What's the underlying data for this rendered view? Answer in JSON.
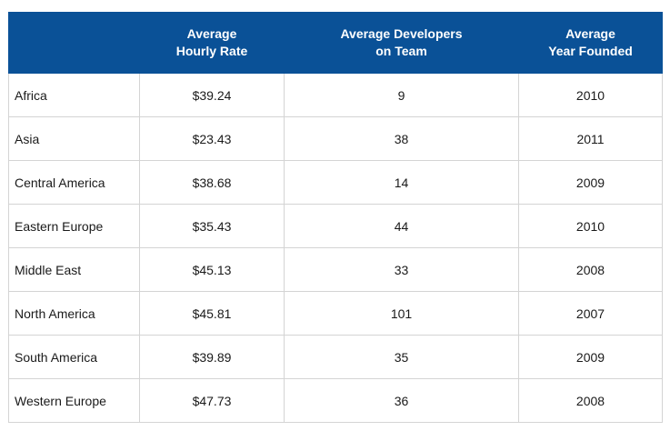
{
  "chart_data": {
    "type": "table",
    "columns": [
      {
        "line1": "",
        "line2": ""
      },
      {
        "line1": "Average",
        "line2": "Hourly Rate"
      },
      {
        "line1": "Average Developers",
        "line2": "on Team"
      },
      {
        "line1": "Average",
        "line2": "Year Founded"
      }
    ],
    "rows": [
      {
        "region": "Africa",
        "rate": "$39.24",
        "developers": 9,
        "year": 2010
      },
      {
        "region": "Asia",
        "rate": "$23.43",
        "developers": 38,
        "year": 2011
      },
      {
        "region": "Central America",
        "rate": "$38.68",
        "developers": 14,
        "year": 2009
      },
      {
        "region": "Eastern Europe",
        "rate": "$35.43",
        "developers": 44,
        "year": 2010
      },
      {
        "region": "Middle East",
        "rate": "$45.13",
        "developers": 33,
        "year": 2008
      },
      {
        "region": "North America",
        "rate": "$45.81",
        "developers": 101,
        "year": 2007
      },
      {
        "region": "South America",
        "rate": "$39.89",
        "developers": 35,
        "year": 2009
      },
      {
        "region": "Western Europe",
        "rate": "$47.73",
        "developers": 36,
        "year": 2008
      }
    ]
  },
  "colors": {
    "header_bg": "#0a5197",
    "header_text": "#ffffff",
    "grid": "#d4d4d4",
    "cell_text": "#1a1a1a"
  }
}
